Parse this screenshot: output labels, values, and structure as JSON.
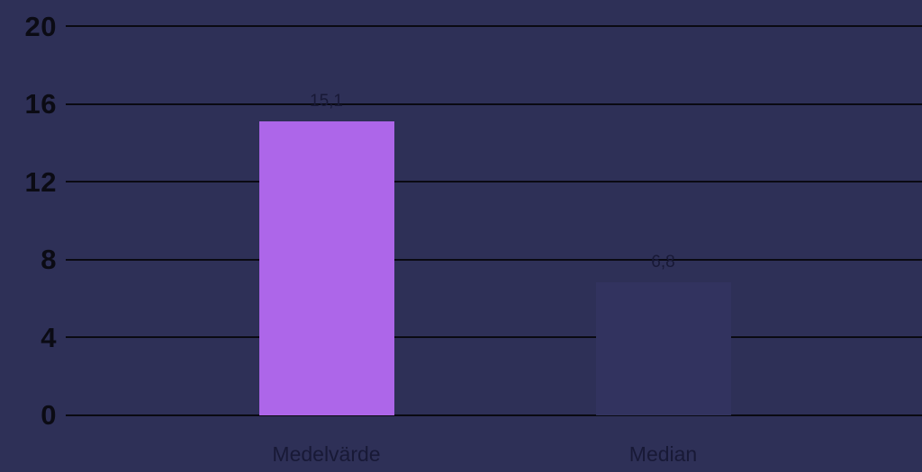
{
  "chart_data": {
    "type": "bar",
    "title": "",
    "xlabel": "",
    "ylabel": "",
    "categories": [
      "Medelvärde",
      "Median"
    ],
    "values": [
      15.1,
      6.8
    ],
    "ylim": [
      0,
      20
    ],
    "y_ticks": [
      0,
      4,
      8,
      12,
      16,
      20
    ],
    "y_tick_labels": [
      "0",
      "4",
      "8",
      "12",
      "16",
      "20"
    ],
    "grid": "horizontal",
    "legend": "none",
    "bars": [
      {
        "category": "Medelvärde",
        "value": 15.1,
        "value_label": "15,1",
        "color": "#ad66e9"
      },
      {
        "category": "Median",
        "value": 6.8,
        "value_label": "6,8",
        "color": "#32335f"
      }
    ]
  },
  "colors": {
    "background": "#2e3057",
    "gridline": "#0a0a12",
    "axis_text": "#0b0b14",
    "value_label_text": "#181936",
    "category_text": "#181936",
    "bar_primary": "#ad66e9",
    "bar_secondary": "#32335f"
  }
}
